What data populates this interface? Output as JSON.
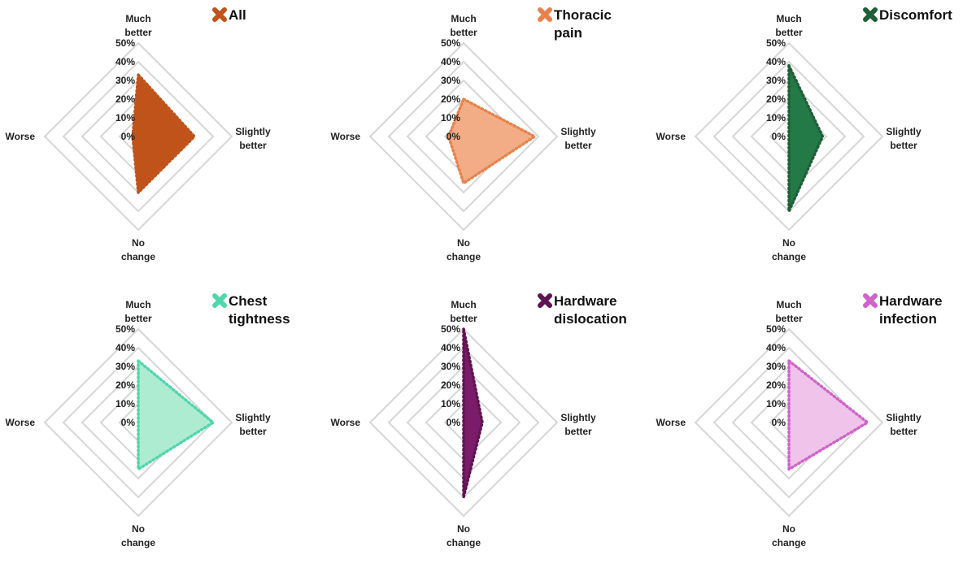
{
  "chart_data": [
    {
      "type": "radar",
      "legend": "All",
      "color": "#c0531a",
      "fill": "#c0531a",
      "ticks": [
        "0%",
        "10%",
        "20%",
        "30%",
        "40%",
        "50%"
      ],
      "rmax": 50,
      "axes": [
        "Much better",
        "Slightly better",
        "No change",
        "Worse"
      ],
      "axis_lines": [
        [
          "Much",
          "better"
        ],
        [
          "Slightly",
          "better"
        ],
        [
          "No",
          "change"
        ],
        [
          "Worse"
        ]
      ],
      "values": [
        33,
        30,
        30,
        3
      ]
    },
    {
      "type": "radar",
      "legend": "Thoracic pain",
      "legend_lines": [
        "Thoracic",
        "pain"
      ],
      "color": "#e8824c",
      "fill": "#f2ad86",
      "ticks": [
        "0%",
        "10%",
        "20%",
        "30%",
        "40%",
        "50%"
      ],
      "rmax": 50,
      "axes": [
        "Much better",
        "Slightly better",
        "No change",
        "Worse"
      ],
      "axis_lines": [
        [
          "Much",
          "better"
        ],
        [
          "Slightly",
          "better"
        ],
        [
          "No",
          "change"
        ],
        [
          "Worse"
        ]
      ],
      "values": [
        20,
        38,
        25,
        8
      ]
    },
    {
      "type": "radar",
      "legend": "Discomfort",
      "color": "#1f5e37",
      "fill": "#237a46",
      "ticks": [
        "0%",
        "10%",
        "20%",
        "30%",
        "40%",
        "50%"
      ],
      "rmax": 50,
      "axes": [
        "Much better",
        "Slightly better",
        "No change",
        "Worse"
      ],
      "axis_lines": [
        [
          "Much",
          "better"
        ],
        [
          "Slightly",
          "better"
        ],
        [
          "No",
          "change"
        ],
        [
          "Worse"
        ]
      ],
      "values": [
        38,
        18,
        40,
        0
      ]
    },
    {
      "type": "radar",
      "legend": "Chest tightness",
      "legend_lines": [
        "Chest",
        "tightness"
      ],
      "color": "#4fd6ac",
      "fill": "#aeecd2",
      "ticks": [
        "0%",
        "10%",
        "20%",
        "30%",
        "40%",
        "50%"
      ],
      "rmax": 50,
      "axes": [
        "Much better",
        "Slightly better",
        "No change",
        "Worse"
      ],
      "axis_lines": [
        [
          "Much",
          "better"
        ],
        [
          "Slightly",
          "better"
        ],
        [
          "No",
          "change"
        ],
        [
          "Worse"
        ]
      ],
      "values": [
        33,
        40,
        25,
        0
      ]
    },
    {
      "type": "radar",
      "legend": "Hardware dislocation",
      "legend_lines": [
        "Hardware",
        "dislocation"
      ],
      "color": "#5e1452",
      "fill": "#7a1c69",
      "ticks": [
        "0%",
        "10%",
        "20%",
        "30%",
        "40%",
        "50%"
      ],
      "rmax": 50,
      "axes": [
        "Much better",
        "Slightly better",
        "No change",
        "Worse"
      ],
      "axis_lines": [
        [
          "Much",
          "better"
        ],
        [
          "Slightly",
          "better"
        ],
        [
          "No",
          "change"
        ],
        [
          "Worse"
        ]
      ],
      "values": [
        50,
        10,
        40,
        0
      ]
    },
    {
      "type": "radar",
      "legend": "Hardware infection",
      "legend_lines": [
        "Hardware",
        "infection"
      ],
      "color": "#cf63c9",
      "fill": "#efc3ea",
      "ticks": [
        "0%",
        "10%",
        "20%",
        "30%",
        "40%",
        "50%"
      ],
      "rmax": 50,
      "axes": [
        "Much better",
        "Slightly better",
        "No change",
        "Worse"
      ],
      "axis_lines": [
        [
          "Much",
          "better"
        ],
        [
          "Slightly",
          "better"
        ],
        [
          "No",
          "change"
        ],
        [
          "Worse"
        ]
      ],
      "values": [
        33,
        42,
        25,
        0
      ]
    }
  ]
}
